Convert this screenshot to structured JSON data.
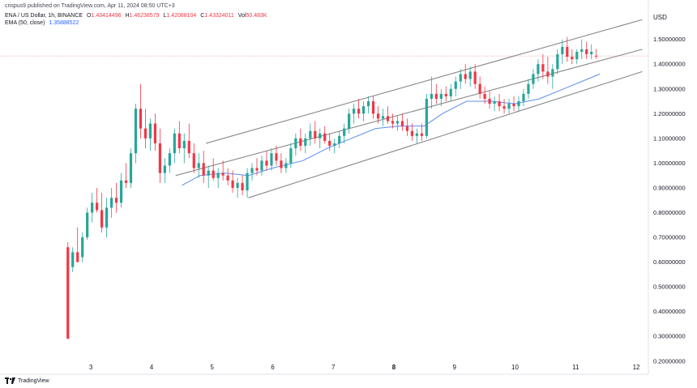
{
  "header": {
    "published_by": "crispus9 published on TradingView.com, Apr 11, 2024 08:50 UTC+3"
  },
  "legend": {
    "symbol": "ENA / US Dollar, 1h, BINANCE",
    "ohlc": [
      {
        "label": "O",
        "value": "1.43414496"
      },
      {
        "label": "H",
        "value": "1.46238579"
      },
      {
        "label": "L",
        "value": "1.42088104"
      },
      {
        "label": "C",
        "value": "1.43324011"
      },
      {
        "label": "Vol",
        "value": "50.483K"
      }
    ],
    "ema_label": "EMA (50, close)",
    "ema_value": "1.35888522"
  },
  "footer": {
    "logo_text": "TradingView"
  },
  "colors": {
    "up": "#26a69a",
    "down": "#f23645",
    "ema": "#5b8def",
    "channel": "#888888",
    "price_line": "#f5a3a3",
    "axis_text": "#131722"
  },
  "chart_data": {
    "type": "candlestick",
    "currency_label": "USD",
    "y_ticks": [
      "1.50000000",
      "1.40000000",
      "1.30000000",
      "1.20000000",
      "1.10000000",
      "1.00000000",
      "0.90000000",
      "0.80000000",
      "0.70000000",
      "0.60000000",
      "0.50000000",
      "0.40000000",
      "0.30000000",
      "0.20000000"
    ],
    "ylim": [
      0.16,
      1.62
    ],
    "x_ticks": [
      {
        "label": "3",
        "x": 3,
        "bold": false
      },
      {
        "label": "4",
        "x": 4,
        "bold": false
      },
      {
        "label": "5",
        "x": 5,
        "bold": false
      },
      {
        "label": "6",
        "x": 6,
        "bold": false
      },
      {
        "label": "7",
        "x": 7,
        "bold": false
      },
      {
        "label": "8",
        "x": 8,
        "bold": true
      },
      {
        "label": "9",
        "x": 9,
        "bold": false
      },
      {
        "label": "10",
        "x": 10,
        "bold": false
      },
      {
        "label": "11",
        "x": 11,
        "bold": false
      },
      {
        "label": "12",
        "x": 12,
        "bold": false
      }
    ],
    "xlim": [
      1.5,
      12.2
    ],
    "last_price": 1.433,
    "channel": {
      "upper": [
        [
          4.9,
          1.08
        ],
        [
          12.1,
          1.58
        ]
      ],
      "middle": [
        [
          4.4,
          0.95
        ],
        [
          12.1,
          1.46
        ]
      ],
      "lower": [
        [
          5.6,
          0.86
        ],
        [
          12.1,
          1.37
        ]
      ]
    },
    "ema": [
      [
        4.5,
        0.91
      ],
      [
        4.8,
        0.95
      ],
      [
        5.2,
        0.96
      ],
      [
        5.6,
        0.95
      ],
      [
        6.0,
        0.98
      ],
      [
        6.5,
        1.01
      ],
      [
        6.9,
        1.06
      ],
      [
        7.3,
        1.1
      ],
      [
        7.7,
        1.14
      ],
      [
        8.1,
        1.15
      ],
      [
        8.5,
        1.15
      ],
      [
        8.8,
        1.2
      ],
      [
        9.2,
        1.25
      ],
      [
        9.6,
        1.25
      ],
      [
        10.0,
        1.24
      ],
      [
        10.4,
        1.26
      ],
      [
        10.8,
        1.3
      ],
      [
        11.2,
        1.34
      ],
      [
        11.4,
        1.36
      ]
    ],
    "candles": [
      {
        "x": 2.62,
        "o": 0.66,
        "h": 0.68,
        "l": 0.29,
        "c": 0.29
      },
      {
        "x": 2.7,
        "o": 0.58,
        "h": 0.66,
        "l": 0.56,
        "c": 0.64
      },
      {
        "x": 2.78,
        "o": 0.64,
        "h": 0.74,
        "l": 0.6,
        "c": 0.6
      },
      {
        "x": 2.86,
        "o": 0.62,
        "h": 0.72,
        "l": 0.6,
        "c": 0.7
      },
      {
        "x": 2.94,
        "o": 0.7,
        "h": 0.82,
        "l": 0.69,
        "c": 0.8
      },
      {
        "x": 3.02,
        "o": 0.8,
        "h": 0.88,
        "l": 0.76,
        "c": 0.84
      },
      {
        "x": 3.1,
        "o": 0.84,
        "h": 0.9,
        "l": 0.8,
        "c": 0.81
      },
      {
        "x": 3.18,
        "o": 0.81,
        "h": 0.88,
        "l": 0.72,
        "c": 0.74
      },
      {
        "x": 3.26,
        "o": 0.74,
        "h": 0.86,
        "l": 0.7,
        "c": 0.82
      },
      {
        "x": 3.34,
        "o": 0.82,
        "h": 0.9,
        "l": 0.78,
        "c": 0.86
      },
      {
        "x": 3.42,
        "o": 0.86,
        "h": 0.92,
        "l": 0.8,
        "c": 0.84
      },
      {
        "x": 3.5,
        "o": 0.84,
        "h": 0.96,
        "l": 0.82,
        "c": 0.93
      },
      {
        "x": 3.58,
        "o": 0.93,
        "h": 1.0,
        "l": 0.9,
        "c": 0.92
      },
      {
        "x": 3.66,
        "o": 0.92,
        "h": 1.06,
        "l": 0.9,
        "c": 1.04
      },
      {
        "x": 3.74,
        "o": 1.04,
        "h": 1.24,
        "l": 1.0,
        "c": 1.22
      },
      {
        "x": 3.82,
        "o": 1.22,
        "h": 1.32,
        "l": 1.1,
        "c": 1.14
      },
      {
        "x": 3.9,
        "o": 1.14,
        "h": 1.22,
        "l": 1.06,
        "c": 1.1
      },
      {
        "x": 3.98,
        "o": 1.1,
        "h": 1.18,
        "l": 1.05,
        "c": 1.16
      },
      {
        "x": 4.06,
        "o": 1.16,
        "h": 1.2,
        "l": 1.05,
        "c": 1.08
      },
      {
        "x": 4.14,
        "o": 1.08,
        "h": 1.14,
        "l": 0.92,
        "c": 0.96
      },
      {
        "x": 4.22,
        "o": 0.96,
        "h": 1.02,
        "l": 0.92,
        "c": 0.99
      },
      {
        "x": 4.3,
        "o": 0.99,
        "h": 1.06,
        "l": 0.96,
        "c": 1.04
      },
      {
        "x": 4.38,
        "o": 1.04,
        "h": 1.14,
        "l": 1.0,
        "c": 1.12
      },
      {
        "x": 4.46,
        "o": 1.12,
        "h": 1.17,
        "l": 1.04,
        "c": 1.06
      },
      {
        "x": 4.54,
        "o": 1.06,
        "h": 1.12,
        "l": 1.0,
        "c": 1.09
      },
      {
        "x": 4.62,
        "o": 1.09,
        "h": 1.16,
        "l": 1.02,
        "c": 1.04
      },
      {
        "x": 4.7,
        "o": 1.04,
        "h": 1.08,
        "l": 0.96,
        "c": 0.98
      },
      {
        "x": 4.78,
        "o": 0.98,
        "h": 1.04,
        "l": 0.94,
        "c": 1.0
      },
      {
        "x": 4.86,
        "o": 1.0,
        "h": 1.05,
        "l": 0.92,
        "c": 0.95
      },
      {
        "x": 4.94,
        "o": 0.95,
        "h": 0.99,
        "l": 0.9,
        "c": 0.97
      },
      {
        "x": 5.02,
        "o": 0.97,
        "h": 1.02,
        "l": 0.93,
        "c": 0.94
      },
      {
        "x": 5.1,
        "o": 0.94,
        "h": 0.98,
        "l": 0.9,
        "c": 0.96
      },
      {
        "x": 5.18,
        "o": 0.96,
        "h": 1.01,
        "l": 0.93,
        "c": 0.95
      },
      {
        "x": 5.26,
        "o": 0.95,
        "h": 0.98,
        "l": 0.91,
        "c": 0.93
      },
      {
        "x": 5.34,
        "o": 0.93,
        "h": 0.97,
        "l": 0.88,
        "c": 0.9
      },
      {
        "x": 5.42,
        "o": 0.9,
        "h": 0.94,
        "l": 0.86,
        "c": 0.92
      },
      {
        "x": 5.5,
        "o": 0.92,
        "h": 0.95,
        "l": 0.87,
        "c": 0.89
      },
      {
        "x": 5.58,
        "o": 0.89,
        "h": 0.98,
        "l": 0.86,
        "c": 0.96
      },
      {
        "x": 5.66,
        "o": 0.96,
        "h": 1.0,
        "l": 0.93,
        "c": 0.98
      },
      {
        "x": 5.74,
        "o": 0.98,
        "h": 1.02,
        "l": 0.95,
        "c": 0.97
      },
      {
        "x": 5.82,
        "o": 0.97,
        "h": 1.03,
        "l": 0.95,
        "c": 1.01
      },
      {
        "x": 5.9,
        "o": 1.01,
        "h": 1.05,
        "l": 0.97,
        "c": 0.99
      },
      {
        "x": 5.98,
        "o": 0.99,
        "h": 1.06,
        "l": 0.97,
        "c": 1.04
      },
      {
        "x": 6.06,
        "o": 1.04,
        "h": 1.07,
        "l": 0.99,
        "c": 1.01
      },
      {
        "x": 6.14,
        "o": 1.01,
        "h": 1.04,
        "l": 0.96,
        "c": 0.98
      },
      {
        "x": 6.22,
        "o": 0.98,
        "h": 1.02,
        "l": 0.96,
        "c": 1.0
      },
      {
        "x": 6.3,
        "o": 1.0,
        "h": 1.08,
        "l": 0.98,
        "c": 1.06
      },
      {
        "x": 6.38,
        "o": 1.06,
        "h": 1.12,
        "l": 1.03,
        "c": 1.1
      },
      {
        "x": 6.46,
        "o": 1.1,
        "h": 1.14,
        "l": 1.05,
        "c": 1.07
      },
      {
        "x": 6.54,
        "o": 1.07,
        "h": 1.12,
        "l": 1.04,
        "c": 1.1
      },
      {
        "x": 6.62,
        "o": 1.1,
        "h": 1.16,
        "l": 1.07,
        "c": 1.13
      },
      {
        "x": 6.7,
        "o": 1.13,
        "h": 1.17,
        "l": 1.08,
        "c": 1.1
      },
      {
        "x": 6.78,
        "o": 1.1,
        "h": 1.14,
        "l": 1.06,
        "c": 1.12
      },
      {
        "x": 6.86,
        "o": 1.12,
        "h": 1.15,
        "l": 1.08,
        "c": 1.09
      },
      {
        "x": 6.94,
        "o": 1.09,
        "h": 1.12,
        "l": 1.05,
        "c": 1.07
      },
      {
        "x": 7.02,
        "o": 1.07,
        "h": 1.1,
        "l": 1.04,
        "c": 1.08
      },
      {
        "x": 7.1,
        "o": 1.08,
        "h": 1.13,
        "l": 1.06,
        "c": 1.11
      },
      {
        "x": 7.18,
        "o": 1.11,
        "h": 1.16,
        "l": 1.08,
        "c": 1.14
      },
      {
        "x": 7.26,
        "o": 1.14,
        "h": 1.22,
        "l": 1.12,
        "c": 1.2
      },
      {
        "x": 7.34,
        "o": 1.2,
        "h": 1.24,
        "l": 1.16,
        "c": 1.22
      },
      {
        "x": 7.42,
        "o": 1.22,
        "h": 1.26,
        "l": 1.18,
        "c": 1.2
      },
      {
        "x": 7.5,
        "o": 1.2,
        "h": 1.25,
        "l": 1.17,
        "c": 1.23
      },
      {
        "x": 7.58,
        "o": 1.23,
        "h": 1.27,
        "l": 1.2,
        "c": 1.25
      },
      {
        "x": 7.66,
        "o": 1.25,
        "h": 1.27,
        "l": 1.18,
        "c": 1.2
      },
      {
        "x": 7.74,
        "o": 1.2,
        "h": 1.23,
        "l": 1.16,
        "c": 1.18
      },
      {
        "x": 7.82,
        "o": 1.18,
        "h": 1.22,
        "l": 1.15,
        "c": 1.19
      },
      {
        "x": 7.9,
        "o": 1.19,
        "h": 1.23,
        "l": 1.16,
        "c": 1.17
      },
      {
        "x": 7.98,
        "o": 1.17,
        "h": 1.2,
        "l": 1.14,
        "c": 1.16
      },
      {
        "x": 8.06,
        "o": 1.16,
        "h": 1.19,
        "l": 1.13,
        "c": 1.17
      },
      {
        "x": 8.14,
        "o": 1.17,
        "h": 1.2,
        "l": 1.13,
        "c": 1.15
      },
      {
        "x": 8.22,
        "o": 1.15,
        "h": 1.18,
        "l": 1.11,
        "c": 1.13
      },
      {
        "x": 8.3,
        "o": 1.13,
        "h": 1.16,
        "l": 1.09,
        "c": 1.11
      },
      {
        "x": 8.38,
        "o": 1.11,
        "h": 1.14,
        "l": 1.08,
        "c": 1.12
      },
      {
        "x": 8.46,
        "o": 1.12,
        "h": 1.16,
        "l": 1.09,
        "c": 1.11
      },
      {
        "x": 8.54,
        "o": 1.11,
        "h": 1.28,
        "l": 1.1,
        "c": 1.26
      },
      {
        "x": 8.62,
        "o": 1.26,
        "h": 1.35,
        "l": 1.22,
        "c": 1.28
      },
      {
        "x": 8.7,
        "o": 1.28,
        "h": 1.32,
        "l": 1.24,
        "c": 1.26
      },
      {
        "x": 8.78,
        "o": 1.26,
        "h": 1.3,
        "l": 1.23,
        "c": 1.28
      },
      {
        "x": 8.86,
        "o": 1.28,
        "h": 1.31,
        "l": 1.25,
        "c": 1.27
      },
      {
        "x": 8.94,
        "o": 1.27,
        "h": 1.32,
        "l": 1.25,
        "c": 1.3
      },
      {
        "x": 9.02,
        "o": 1.3,
        "h": 1.35,
        "l": 1.27,
        "c": 1.33
      },
      {
        "x": 9.1,
        "o": 1.33,
        "h": 1.38,
        "l": 1.3,
        "c": 1.36
      },
      {
        "x": 9.18,
        "o": 1.36,
        "h": 1.4,
        "l": 1.32,
        "c": 1.34
      },
      {
        "x": 9.26,
        "o": 1.34,
        "h": 1.39,
        "l": 1.31,
        "c": 1.37
      },
      {
        "x": 9.34,
        "o": 1.37,
        "h": 1.4,
        "l": 1.3,
        "c": 1.32
      },
      {
        "x": 9.42,
        "o": 1.32,
        "h": 1.35,
        "l": 1.26,
        "c": 1.28
      },
      {
        "x": 9.5,
        "o": 1.28,
        "h": 1.31,
        "l": 1.24,
        "c": 1.26
      },
      {
        "x": 9.58,
        "o": 1.26,
        "h": 1.29,
        "l": 1.22,
        "c": 1.24
      },
      {
        "x": 9.66,
        "o": 1.24,
        "h": 1.27,
        "l": 1.21,
        "c": 1.25
      },
      {
        "x": 9.74,
        "o": 1.25,
        "h": 1.28,
        "l": 1.21,
        "c": 1.23
      },
      {
        "x": 9.82,
        "o": 1.23,
        "h": 1.26,
        "l": 1.2,
        "c": 1.22
      },
      {
        "x": 9.9,
        "o": 1.22,
        "h": 1.26,
        "l": 1.2,
        "c": 1.24
      },
      {
        "x": 9.98,
        "o": 1.24,
        "h": 1.27,
        "l": 1.21,
        "c": 1.23
      },
      {
        "x": 10.06,
        "o": 1.23,
        "h": 1.27,
        "l": 1.21,
        "c": 1.25
      },
      {
        "x": 10.14,
        "o": 1.25,
        "h": 1.3,
        "l": 1.23,
        "c": 1.28
      },
      {
        "x": 10.22,
        "o": 1.28,
        "h": 1.34,
        "l": 1.26,
        "c": 1.32
      },
      {
        "x": 10.3,
        "o": 1.32,
        "h": 1.38,
        "l": 1.3,
        "c": 1.36
      },
      {
        "x": 10.38,
        "o": 1.36,
        "h": 1.42,
        "l": 1.33,
        "c": 1.4
      },
      {
        "x": 10.46,
        "o": 1.4,
        "h": 1.44,
        "l": 1.34,
        "c": 1.37
      },
      {
        "x": 10.54,
        "o": 1.37,
        "h": 1.43,
        "l": 1.32,
        "c": 1.35
      },
      {
        "x": 10.62,
        "o": 1.35,
        "h": 1.4,
        "l": 1.3,
        "c": 1.38
      },
      {
        "x": 10.7,
        "o": 1.38,
        "h": 1.46,
        "l": 1.36,
        "c": 1.44
      },
      {
        "x": 10.78,
        "o": 1.44,
        "h": 1.5,
        "l": 1.4,
        "c": 1.47
      },
      {
        "x": 10.86,
        "o": 1.47,
        "h": 1.51,
        "l": 1.41,
        "c": 1.43
      },
      {
        "x": 10.94,
        "o": 1.43,
        "h": 1.46,
        "l": 1.4,
        "c": 1.42
      },
      {
        "x": 11.02,
        "o": 1.42,
        "h": 1.46,
        "l": 1.4,
        "c": 1.45
      },
      {
        "x": 11.1,
        "o": 1.45,
        "h": 1.5,
        "l": 1.42,
        "c": 1.46
      },
      {
        "x": 11.18,
        "o": 1.46,
        "h": 1.49,
        "l": 1.42,
        "c": 1.44
      },
      {
        "x": 11.26,
        "o": 1.44,
        "h": 1.48,
        "l": 1.42,
        "c": 1.45
      },
      {
        "x": 11.34,
        "o": 1.434,
        "h": 1.462,
        "l": 1.421,
        "c": 1.433
      }
    ]
  }
}
